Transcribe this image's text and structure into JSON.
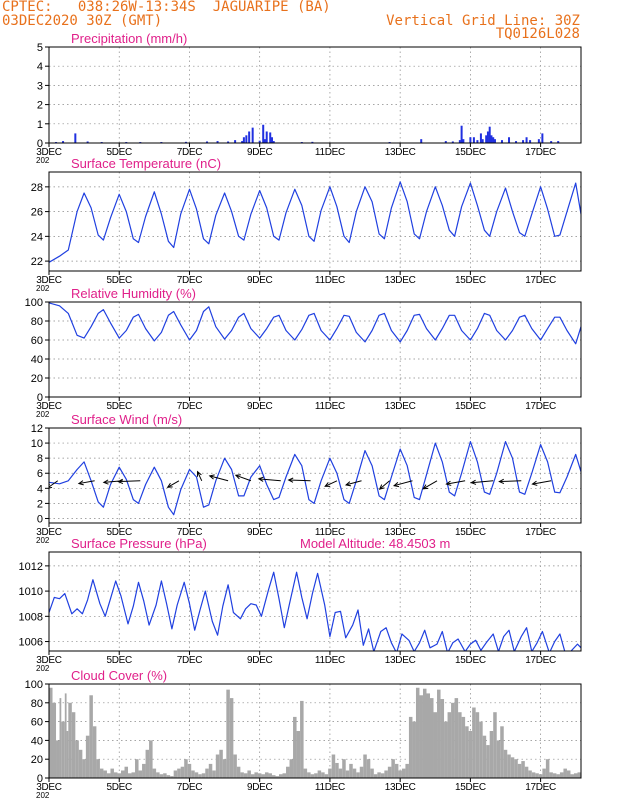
{
  "header": {
    "line1_left": "CPTEC:   038:26W-13:34S  JAGUARIPE (BA)",
    "line2_left": "03DEC2020 30Z (GMT)",
    "line1_right": "Vertical Grid Line: 30Z",
    "line2_right": "TQ0126L028"
  },
  "colors": {
    "header": "#e8711c",
    "title": "#e0208a",
    "line": "#2040e0",
    "precip_bar": "#2030e0",
    "cloud_fill": "#a8a8a8",
    "arrow": "#000000",
    "grid": "#888888"
  },
  "x_axis": {
    "tick_labels": [
      "3DEC",
      "5DEC",
      "7DEC",
      "9DEC",
      "11DEC",
      "13DEC",
      "15DEC",
      "17DEC"
    ],
    "tick_days": [
      3,
      5,
      7,
      9,
      11,
      13,
      15,
      17
    ],
    "range_days": [
      3,
      18.15
    ],
    "residual_label": "202"
  },
  "chart_data": [
    {
      "id": "precip",
      "type": "bar",
      "title": "Precipitation (mm/h)",
      "ylim": [
        0,
        5
      ],
      "yticks": [
        0,
        1,
        2,
        3,
        4,
        5
      ],
      "grid": true,
      "x": [
        3.2,
        3.4,
        3.75,
        4.1,
        4.5,
        5.2,
        5.6,
        6.2,
        6.9,
        7.5,
        7.8,
        8.1,
        8.3,
        8.5,
        8.55,
        8.62,
        8.7,
        8.8,
        9.0,
        9.1,
        9.15,
        9.2,
        9.3,
        9.35,
        9.4,
        10.2,
        10.5,
        12.7,
        13.6,
        14.3,
        14.5,
        14.7,
        14.75,
        14.8,
        15.0,
        15.1,
        15.2,
        15.3,
        15.35,
        15.45,
        15.5,
        15.55,
        15.6,
        15.65,
        15.7,
        15.9,
        16.1,
        16.3,
        16.5,
        16.6,
        16.7,
        16.95,
        17.05,
        17.3,
        17.5
      ],
      "values": [
        0.05,
        0.1,
        0.5,
        0.08,
        0.05,
        0.05,
        0.05,
        0.05,
        0.06,
        0.08,
        0.1,
        0.08,
        0.15,
        0.1,
        0.3,
        0.4,
        0.6,
        0.8,
        0.12,
        0.95,
        0.2,
        0.6,
        0.55,
        0.3,
        0.1,
        0.05,
        0.06,
        0.05,
        0.2,
        0.1,
        0.08,
        0.15,
        0.9,
        0.2,
        0.3,
        0.3,
        0.15,
        0.5,
        0.2,
        0.4,
        0.6,
        0.85,
        0.4,
        0.3,
        0.2,
        0.15,
        0.3,
        0.1,
        0.15,
        0.3,
        0.15,
        0.2,
        0.5,
        0.1,
        0.1
      ]
    },
    {
      "id": "temp",
      "type": "line",
      "title": "Surface Temperature (nC)",
      "ylim": [
        21.2,
        29.2
      ],
      "yticks": [
        22,
        24,
        26,
        28
      ],
      "grid": true,
      "x": [
        3.0,
        3.3,
        3.55,
        3.8,
        4.0,
        4.2,
        4.4,
        4.55,
        4.75,
        5.0,
        5.2,
        5.4,
        5.55,
        5.75,
        6.0,
        6.2,
        6.4,
        6.55,
        6.75,
        7.0,
        7.2,
        7.4,
        7.55,
        7.75,
        8.0,
        8.2,
        8.4,
        8.55,
        8.75,
        9.0,
        9.2,
        9.4,
        9.55,
        9.75,
        10.0,
        10.2,
        10.4,
        10.55,
        10.75,
        11.0,
        11.2,
        11.4,
        11.55,
        11.75,
        12.0,
        12.2,
        12.4,
        12.55,
        12.75,
        13.0,
        13.2,
        13.4,
        13.55,
        13.75,
        14.0,
        14.2,
        14.4,
        14.55,
        14.75,
        15.0,
        15.2,
        15.4,
        15.55,
        15.75,
        16.0,
        16.2,
        16.4,
        16.55,
        16.75,
        17.0,
        17.2,
        17.4,
        17.55,
        17.75,
        18.0,
        18.15
      ],
      "values": [
        21.9,
        22.4,
        22.9,
        26.0,
        27.5,
        26.3,
        24.1,
        23.7,
        25.5,
        27.4,
        26.0,
        23.8,
        23.5,
        25.6,
        27.6,
        25.8,
        23.6,
        23.1,
        25.8,
        27.8,
        26.2,
        23.8,
        23.4,
        25.7,
        27.5,
        26.0,
        24.0,
        23.7,
        25.8,
        27.7,
        26.3,
        24.0,
        23.7,
        25.9,
        27.8,
        26.5,
        24.0,
        23.6,
        26.1,
        28.0,
        26.4,
        24.0,
        23.5,
        26.0,
        28.0,
        26.8,
        24.2,
        23.8,
        26.3,
        28.4,
        26.8,
        24.2,
        23.8,
        26.0,
        28.0,
        26.5,
        24.5,
        24.0,
        26.4,
        28.3,
        26.5,
        24.5,
        24.0,
        26.0,
        27.9,
        26.0,
        24.3,
        24.0,
        25.8,
        28.0,
        26.2,
        24.0,
        24.1,
        26.0,
        28.3,
        25.8
      ]
    },
    {
      "id": "rh",
      "type": "line",
      "title": "Relative Humidity (%)",
      "ylim": [
        0,
        100
      ],
      "yticks": [
        0,
        20,
        40,
        60,
        80,
        100
      ],
      "grid": true,
      "x": [
        3.0,
        3.3,
        3.55,
        3.8,
        4.0,
        4.2,
        4.4,
        4.55,
        4.75,
        5.0,
        5.2,
        5.4,
        5.55,
        5.75,
        6.0,
        6.2,
        6.4,
        6.55,
        6.75,
        7.0,
        7.2,
        7.4,
        7.55,
        7.75,
        8.0,
        8.2,
        8.4,
        8.55,
        8.75,
        9.0,
        9.2,
        9.4,
        9.55,
        9.75,
        10.0,
        10.2,
        10.4,
        10.55,
        10.75,
        11.0,
        11.2,
        11.4,
        11.55,
        11.75,
        12.0,
        12.2,
        12.4,
        12.55,
        12.75,
        13.0,
        13.2,
        13.4,
        13.55,
        13.75,
        14.0,
        14.2,
        14.4,
        14.55,
        14.75,
        15.0,
        15.2,
        15.4,
        15.55,
        15.75,
        16.0,
        16.2,
        16.4,
        16.55,
        16.75,
        17.0,
        17.2,
        17.4,
        17.55,
        17.75,
        18.0,
        18.15
      ],
      "values": [
        99,
        96,
        88,
        65,
        62,
        74,
        88,
        92,
        78,
        62,
        70,
        84,
        87,
        72,
        59,
        68,
        86,
        90,
        76,
        60,
        70,
        90,
        95,
        74,
        61,
        70,
        84,
        88,
        72,
        62,
        72,
        84,
        86,
        70,
        60,
        71,
        86,
        88,
        70,
        60,
        72,
        86,
        85,
        68,
        58,
        70,
        86,
        88,
        70,
        58,
        70,
        86,
        87,
        72,
        60,
        72,
        86,
        86,
        70,
        60,
        72,
        88,
        86,
        70,
        60,
        70,
        84,
        86,
        72,
        60,
        72,
        84,
        84,
        70,
        56,
        74
      ]
    },
    {
      "id": "wind",
      "type": "line",
      "title": "Surface Wind (m/s)",
      "ylim": [
        -0.6,
        12
      ],
      "yticks": [
        0,
        2,
        4,
        6,
        8,
        10,
        12
      ],
      "grid": true,
      "x": [
        3.0,
        3.3,
        3.55,
        3.8,
        4.0,
        4.2,
        4.4,
        4.55,
        4.75,
        5.0,
        5.2,
        5.4,
        5.55,
        5.75,
        6.0,
        6.2,
        6.4,
        6.55,
        6.75,
        7.0,
        7.2,
        7.4,
        7.55,
        7.75,
        8.0,
        8.2,
        8.4,
        8.55,
        8.75,
        9.0,
        9.2,
        9.4,
        9.55,
        9.75,
        10.0,
        10.2,
        10.4,
        10.55,
        10.75,
        11.0,
        11.2,
        11.4,
        11.55,
        11.75,
        12.0,
        12.2,
        12.4,
        12.55,
        12.75,
        13.0,
        13.2,
        13.4,
        13.55,
        13.75,
        14.0,
        14.2,
        14.4,
        14.55,
        14.75,
        15.0,
        15.2,
        15.4,
        15.55,
        15.75,
        16.0,
        16.2,
        16.4,
        16.55,
        16.75,
        17.0,
        17.2,
        17.4,
        17.55,
        17.75,
        18.0,
        18.15
      ],
      "values": [
        4.8,
        4.6,
        5.0,
        6.5,
        7.5,
        5.0,
        2.2,
        1.5,
        4.5,
        6.8,
        5.2,
        2.5,
        2.0,
        4.5,
        6.8,
        5.0,
        1.5,
        0.5,
        3.8,
        6.5,
        5.5,
        1.5,
        1.8,
        5.0,
        8.0,
        6.5,
        3.0,
        3.0,
        5.5,
        7.0,
        4.5,
        2.5,
        2.8,
        5.5,
        8.5,
        7.0,
        2.5,
        2.0,
        5.0,
        8.0,
        6.0,
        2.5,
        2.0,
        5.0,
        9.0,
        7.0,
        3.0,
        2.5,
        5.5,
        9.2,
        7.0,
        2.8,
        2.5,
        5.8,
        10.0,
        7.5,
        3.5,
        3.0,
        6.0,
        10.2,
        7.5,
        3.5,
        3.2,
        6.0,
        10.2,
        8.0,
        3.5,
        3.2,
        6.0,
        9.8,
        7.5,
        3.5,
        3.4,
        5.5,
        8.5,
        6.2
      ]
    },
    {
      "id": "wind_vectors",
      "type": "scatter",
      "x": [
        3.25,
        4.3,
        5.1,
        5.6,
        6.7,
        7.35,
        8.1,
        8.75,
        9.6,
        10.45,
        11.2,
        11.9,
        12.7,
        13.35,
        14.05,
        14.85,
        15.65,
        16.45,
        17.3
      ],
      "direction_deg": [
        215,
        190,
        185,
        182,
        210,
        115,
        165,
        160,
        175,
        178,
        205,
        195,
        220,
        195,
        210,
        190,
        185,
        182,
        190
      ],
      "magnitude": [
        3,
        4,
        5,
        6,
        3,
        2,
        5,
        4,
        6,
        6,
        3,
        4,
        3,
        5,
        4,
        5,
        6,
        6,
        5
      ]
    },
    {
      "id": "press",
      "type": "line",
      "title": "Surface Pressure (hPa)",
      "annotation": "Model Altitude:  48.4503 m",
      "ylim": [
        1005.25,
        1013.1
      ],
      "yticks": [
        1006,
        1008,
        1010,
        1012
      ],
      "grid": true,
      "x": [
        3.0,
        3.15,
        3.3,
        3.45,
        3.65,
        3.8,
        3.95,
        4.1,
        4.25,
        4.45,
        4.6,
        4.75,
        4.9,
        5.05,
        5.25,
        5.4,
        5.55,
        5.7,
        5.85,
        6.05,
        6.2,
        6.35,
        6.5,
        6.65,
        6.85,
        7.0,
        7.15,
        7.3,
        7.45,
        7.65,
        7.8,
        7.95,
        8.1,
        8.25,
        8.45,
        8.6,
        8.75,
        8.9,
        9.05,
        9.25,
        9.4,
        9.55,
        9.7,
        9.85,
        10.05,
        10.2,
        10.35,
        10.5,
        10.65,
        10.85,
        11.0,
        11.15,
        11.3,
        11.45,
        11.65,
        11.8,
        11.95,
        12.1,
        12.25,
        12.45,
        12.6,
        12.75,
        12.9,
        13.05,
        13.25,
        13.4,
        13.55,
        13.7,
        13.85,
        14.05,
        14.2,
        14.35,
        14.5,
        14.65,
        14.85,
        15.0,
        15.15,
        15.3,
        15.45,
        15.65,
        15.8,
        15.95,
        16.1,
        16.25,
        16.45,
        16.6,
        16.75,
        16.9,
        17.05,
        17.25,
        17.4,
        17.55,
        17.7,
        17.85,
        18.05,
        18.15
      ],
      "values": [
        1008.3,
        1009.5,
        1009.4,
        1009.8,
        1008.2,
        1008.6,
        1008.2,
        1009.3,
        1010.9,
        1009.0,
        1008.0,
        1009.4,
        1010.8,
        1009.6,
        1007.4,
        1008.8,
        1010.7,
        1009.2,
        1007.3,
        1008.9,
        1010.8,
        1009.0,
        1007.0,
        1008.9,
        1010.7,
        1009.0,
        1006.9,
        1008.5,
        1010.0,
        1007.6,
        1006.5,
        1008.8,
        1010.5,
        1008.3,
        1007.8,
        1008.6,
        1009.0,
        1008.9,
        1008.0,
        1010.1,
        1011.5,
        1009.4,
        1007.1,
        1009.0,
        1011.5,
        1009.5,
        1007.8,
        1009.8,
        1011.4,
        1008.9,
        1006.4,
        1008.3,
        1008.4,
        1006.3,
        1007.3,
        1008.5,
        1005.7,
        1007.0,
        1005.2,
        1006.8,
        1007.1,
        1005.9,
        1005.1,
        1006.6,
        1006.1,
        1005.2,
        1005.9,
        1006.9,
        1005.5,
        1005.8,
        1006.8,
        1005.1,
        1005.9,
        1006.2,
        1005.2,
        1005.8,
        1006.1,
        1005.3,
        1005.9,
        1006.6,
        1005.2,
        1006.4,
        1006.9,
        1005.2,
        1006.4,
        1007.1,
        1005.2,
        1005.9,
        1006.8,
        1005.1,
        1006.0,
        1006.6,
        1005.1,
        1005.2,
        1005.8,
        1005.5
      ]
    },
    {
      "id": "cloud",
      "type": "area",
      "title": "Cloud Cover (%)",
      "ylim": [
        0,
        100
      ],
      "yticks": [
        0,
        20,
        40,
        60,
        80,
        100
      ],
      "grid": true,
      "x": [
        3.0,
        3.1,
        3.2,
        3.3,
        3.35,
        3.45,
        3.5,
        3.55,
        3.65,
        3.75,
        3.85,
        3.95,
        4.05,
        4.15,
        4.25,
        4.35,
        4.45,
        4.55,
        4.65,
        4.75,
        4.85,
        4.95,
        5.05,
        5.15,
        5.25,
        5.35,
        5.45,
        5.55,
        5.65,
        5.75,
        5.85,
        5.95,
        6.05,
        6.15,
        6.25,
        6.35,
        6.45,
        6.55,
        6.65,
        6.75,
        6.85,
        6.95,
        7.05,
        7.15,
        7.25,
        7.35,
        7.45,
        7.55,
        7.65,
        7.75,
        7.85,
        7.95,
        8.05,
        8.15,
        8.25,
        8.35,
        8.45,
        8.55,
        8.65,
        8.75,
        8.85,
        8.95,
        9.05,
        9.15,
        9.25,
        9.35,
        9.45,
        9.55,
        9.65,
        9.75,
        9.85,
        9.95,
        10.05,
        10.15,
        10.25,
        10.35,
        10.45,
        10.55,
        10.65,
        10.75,
        10.85,
        10.95,
        11.05,
        11.15,
        11.25,
        11.35,
        11.45,
        11.55,
        11.65,
        11.75,
        11.85,
        11.95,
        12.05,
        12.15,
        12.25,
        12.35,
        12.45,
        12.55,
        12.65,
        12.75,
        12.85,
        12.95,
        13.05,
        13.15,
        13.25,
        13.35,
        13.45,
        13.55,
        13.65,
        13.75,
        13.85,
        13.95,
        14.05,
        14.15,
        14.25,
        14.35,
        14.45,
        14.55,
        14.65,
        14.75,
        14.85,
        14.95,
        15.05,
        15.15,
        15.25,
        15.35,
        15.45,
        15.55,
        15.65,
        15.75,
        15.85,
        15.95,
        16.05,
        16.15,
        16.25,
        16.35,
        16.45,
        16.55,
        16.65,
        16.75,
        16.85,
        16.95,
        17.05,
        17.15,
        17.25,
        17.35,
        17.45,
        17.55,
        17.65,
        17.75,
        17.85,
        17.95,
        18.05,
        18.15
      ],
      "values": [
        96,
        80,
        40,
        85,
        60,
        90,
        50,
        80,
        70,
        40,
        30,
        20,
        45,
        88,
        55,
        20,
        10,
        8,
        5,
        10,
        6,
        5,
        8,
        12,
        5,
        6,
        20,
        8,
        15,
        30,
        40,
        10,
        6,
        4,
        5,
        3,
        2,
        8,
        10,
        12,
        20,
        15,
        8,
        6,
        4,
        5,
        10,
        15,
        8,
        25,
        30,
        20,
        94,
        85,
        25,
        12,
        6,
        5,
        8,
        4,
        6,
        5,
        4,
        6,
        5,
        3,
        2,
        4,
        5,
        12,
        20,
        65,
        50,
        82,
        10,
        6,
        4,
        5,
        8,
        6,
        4,
        10,
        25,
        16,
        10,
        20,
        8,
        15,
        10,
        6,
        12,
        25,
        20,
        10,
        4,
        6,
        5,
        8,
        12,
        20,
        15,
        8,
        10,
        15,
        65,
        60,
        96,
        88,
        95,
        90,
        85,
        70,
        94,
        84,
        60,
        70,
        80,
        85,
        70,
        65,
        55,
        50,
        75,
        70,
        60,
        45,
        35,
        50,
        70,
        40,
        55,
        30,
        25,
        22,
        20,
        15,
        18,
        12,
        8,
        6,
        5,
        4,
        10,
        20,
        6,
        5,
        4,
        6,
        10,
        8,
        4,
        5,
        6,
        8
      ]
    }
  ]
}
